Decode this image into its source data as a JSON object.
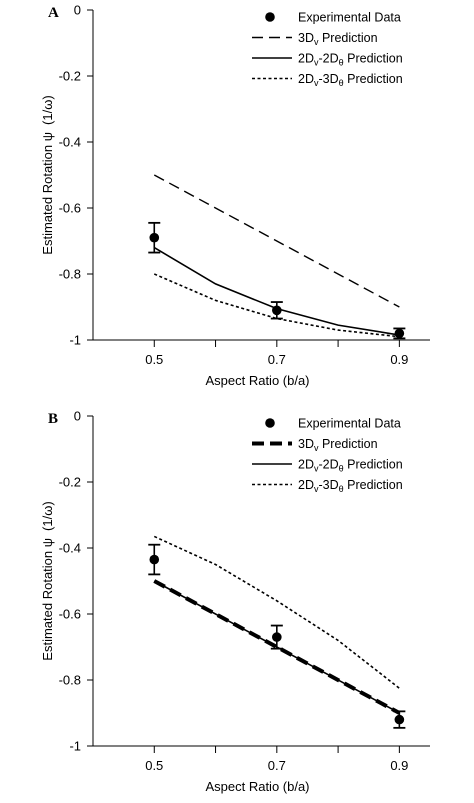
{
  "chart_data": [
    {
      "panel_label": "A",
      "type": "line",
      "xlabel": "Aspect Ratio (b/a)",
      "ylabel_parts": [
        "Estimated Rotation ψ",
        "(1/ω)"
      ],
      "categories": [
        "0.5",
        "0.7",
        "0.9"
      ],
      "x": [
        0.5,
        0.7,
        0.9
      ],
      "xlim": [
        0.4,
        0.95
      ],
      "ylim": [
        -1,
        0
      ],
      "yticks": [
        0,
        -0.2,
        -0.4,
        -0.6,
        -0.8,
        -1
      ],
      "ytick_labels": [
        "0",
        "-0.2",
        "-0.4",
        "-0.6",
        "-0.8",
        "-1"
      ],
      "legend": "top-right",
      "series": [
        {
          "key": "exp",
          "name": "Experimental Data",
          "style": "points",
          "x": [
            0.5,
            0.7,
            0.9
          ],
          "values": [
            -0.69,
            -0.91,
            -0.98
          ],
          "errors": [
            0.045,
            0.025,
            0.015
          ]
        },
        {
          "key": "3dv",
          "name_parts": [
            "3D",
            "v",
            " Prediction"
          ],
          "style": "dashed",
          "x": [
            0.5,
            0.9
          ],
          "values": [
            -0.5,
            -0.9
          ]
        },
        {
          "key": "2d2d",
          "name_parts": [
            "2D",
            "v",
            "-2D",
            "θ",
            " Prediction"
          ],
          "style": "solid",
          "x": [
            0.5,
            0.6,
            0.7,
            0.8,
            0.9
          ],
          "values": [
            -0.72,
            -0.83,
            -0.905,
            -0.955,
            -0.985
          ]
        },
        {
          "key": "2d3d",
          "name_parts": [
            "2D",
            "v",
            "-3D",
            "θ",
            " Prediction"
          ],
          "style": "dotted",
          "x": [
            0.5,
            0.6,
            0.7,
            0.8,
            0.9
          ],
          "values": [
            -0.8,
            -0.88,
            -0.935,
            -0.97,
            -0.99
          ]
        }
      ]
    },
    {
      "panel_label": "B",
      "type": "line",
      "xlabel": "Aspect Ratio (b/a)",
      "ylabel_parts": [
        "Estimated Rotation ψ",
        "(1/ω)"
      ],
      "categories": [
        "0.5",
        "0.7",
        "0.9"
      ],
      "x": [
        0.5,
        0.7,
        0.9
      ],
      "xlim": [
        0.4,
        0.95
      ],
      "ylim": [
        -1,
        0
      ],
      "yticks": [
        0,
        -0.2,
        -0.4,
        -0.6,
        -0.8,
        -1
      ],
      "ytick_labels": [
        "0",
        "-0.2",
        "-0.4",
        "-0.6",
        "-0.8",
        "-1"
      ],
      "legend": "top-right",
      "series": [
        {
          "key": "exp",
          "name": "Experimental Data",
          "style": "points",
          "x": [
            0.5,
            0.7,
            0.9
          ],
          "values": [
            -0.435,
            -0.67,
            -0.92
          ],
          "errors": [
            0.045,
            0.035,
            0.025
          ]
        },
        {
          "key": "3dv",
          "name_parts": [
            "3D",
            "v",
            " Prediction"
          ],
          "style": "thick-dashed",
          "x": [
            0.5,
            0.9
          ],
          "values": [
            -0.5,
            -0.9
          ]
        },
        {
          "key": "2d2d",
          "name_parts": [
            "2D",
            "v",
            "-2D",
            "θ",
            " Prediction"
          ],
          "style": "solid",
          "x": [
            0.5,
            0.9
          ],
          "values": [
            -0.5,
            -0.9
          ]
        },
        {
          "key": "2d3d",
          "name_parts": [
            "2D",
            "v",
            "-3D",
            "θ",
            " Prediction"
          ],
          "style": "dotted",
          "x": [
            0.5,
            0.6,
            0.7,
            0.8,
            0.9
          ],
          "values": [
            -0.365,
            -0.45,
            -0.56,
            -0.68,
            -0.825
          ]
        }
      ]
    }
  ]
}
